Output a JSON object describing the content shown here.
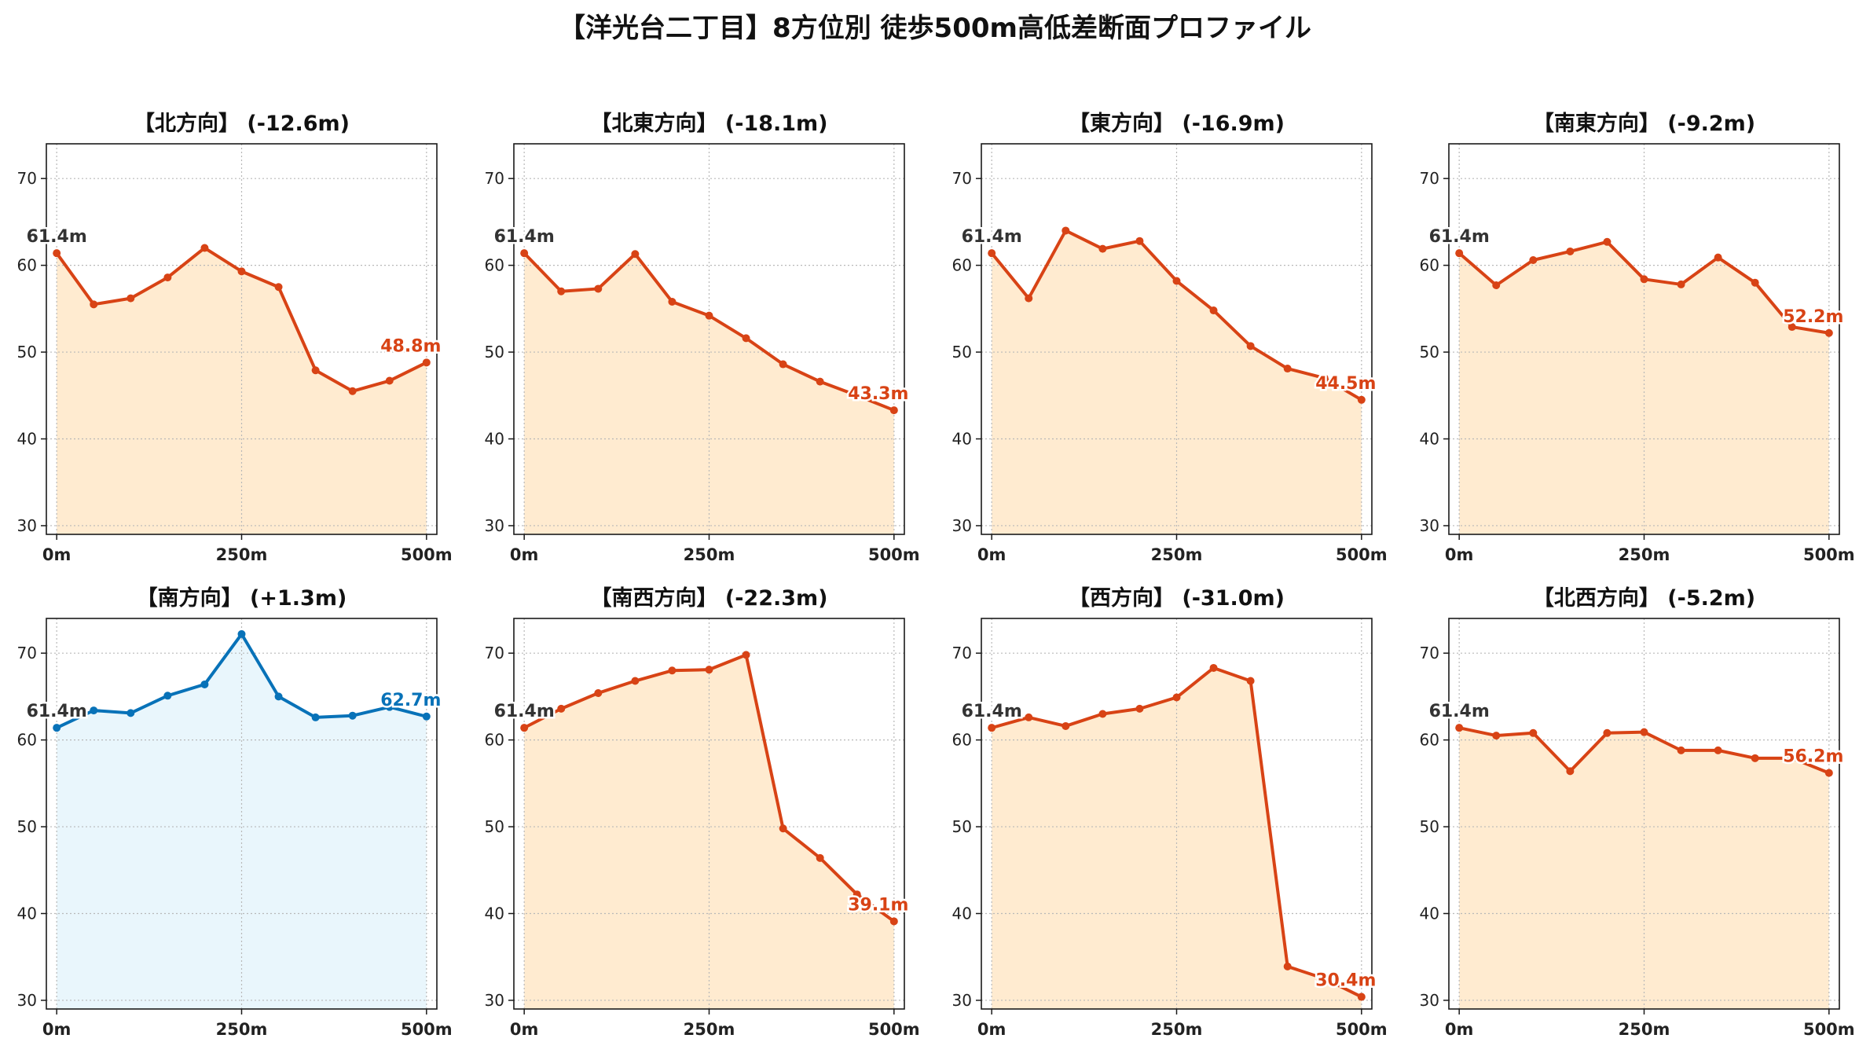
{
  "title": "【洋光台二丁目】8方位別 徒歩500m高低差断面プロファイル",
  "colors": {
    "down_line": "#d84315",
    "down_fill": "#ffebd0",
    "up_line": "#0872b8",
    "up_fill": "#e9f6fc",
    "start_label": "#333333"
  },
  "chart_data": [
    {
      "type": "area",
      "title": "【北方向】 (-12.6m)",
      "trend": "down",
      "x": [
        0,
        50,
        100,
        150,
        200,
        250,
        300,
        350,
        400,
        450,
        500
      ],
      "y": [
        61.4,
        55.5,
        56.2,
        58.6,
        62.0,
        59.3,
        57.5,
        47.9,
        45.5,
        46.7,
        48.8
      ],
      "xticks": [
        "0m",
        "250m",
        "500m"
      ],
      "yticks": [
        30,
        40,
        50,
        60,
        70
      ],
      "ylim": [
        29,
        74
      ],
      "start_label": "61.4m",
      "end_label": "48.8m",
      "grid": true
    },
    {
      "type": "area",
      "title": "【北東方向】 (-18.1m)",
      "trend": "down",
      "x": [
        0,
        50,
        100,
        150,
        200,
        250,
        300,
        350,
        400,
        450,
        500
      ],
      "y": [
        61.4,
        57.0,
        57.3,
        61.3,
        55.8,
        54.2,
        51.6,
        48.6,
        46.6,
        45.0,
        43.3
      ],
      "xticks": [
        "0m",
        "250m",
        "500m"
      ],
      "yticks": [
        30,
        40,
        50,
        60,
        70
      ],
      "ylim": [
        29,
        74
      ],
      "start_label": "61.4m",
      "end_label": "43.3m",
      "grid": true
    },
    {
      "type": "area",
      "title": "【東方向】 (-16.9m)",
      "trend": "down",
      "x": [
        0,
        50,
        100,
        150,
        200,
        250,
        300,
        350,
        400,
        450,
        500
      ],
      "y": [
        61.4,
        56.2,
        64.0,
        61.9,
        62.8,
        58.2,
        54.8,
        50.7,
        48.1,
        47.0,
        44.5
      ],
      "xticks": [
        "0m",
        "250m",
        "500m"
      ],
      "yticks": [
        30,
        40,
        50,
        60,
        70
      ],
      "ylim": [
        29,
        74
      ],
      "start_label": "61.4m",
      "end_label": "44.5m",
      "grid": true
    },
    {
      "type": "area",
      "title": "【南東方向】 (-9.2m)",
      "trend": "down",
      "x": [
        0,
        50,
        100,
        150,
        200,
        250,
        300,
        350,
        400,
        450,
        500
      ],
      "y": [
        61.4,
        57.7,
        60.6,
        61.6,
        62.7,
        58.4,
        57.8,
        60.9,
        58.0,
        52.9,
        52.2
      ],
      "xticks": [
        "0m",
        "250m",
        "500m"
      ],
      "yticks": [
        30,
        40,
        50,
        60,
        70
      ],
      "ylim": [
        29,
        74
      ],
      "start_label": "61.4m",
      "end_label": "52.2m",
      "grid": true
    },
    {
      "type": "area",
      "title": "【南方向】 (+1.3m)",
      "trend": "up",
      "x": [
        0,
        50,
        100,
        150,
        200,
        250,
        300,
        350,
        400,
        450,
        500
      ],
      "y": [
        61.4,
        63.4,
        63.1,
        65.1,
        66.4,
        72.2,
        65.0,
        62.6,
        62.8,
        63.8,
        62.7
      ],
      "xticks": [
        "0m",
        "250m",
        "500m"
      ],
      "yticks": [
        30,
        40,
        50,
        60,
        70
      ],
      "ylim": [
        29,
        74
      ],
      "start_label": "61.4m",
      "end_label": "62.7m",
      "grid": true
    },
    {
      "type": "area",
      "title": "【南西方向】 (-22.3m)",
      "trend": "down",
      "x": [
        0,
        50,
        100,
        150,
        200,
        250,
        300,
        350,
        400,
        450,
        500
      ],
      "y": [
        61.4,
        63.6,
        65.4,
        66.8,
        68.0,
        68.1,
        69.8,
        49.8,
        46.4,
        42.2,
        39.1
      ],
      "xticks": [
        "0m",
        "250m",
        "500m"
      ],
      "yticks": [
        30,
        40,
        50,
        60,
        70
      ],
      "ylim": [
        29,
        74
      ],
      "start_label": "61.4m",
      "end_label": "39.1m",
      "grid": true
    },
    {
      "type": "area",
      "title": "【西方向】 (-31.0m)",
      "trend": "down",
      "x": [
        0,
        50,
        100,
        150,
        200,
        250,
        300,
        350,
        400,
        450,
        500
      ],
      "y": [
        61.4,
        62.6,
        61.6,
        63.0,
        63.6,
        64.9,
        68.3,
        66.8,
        33.9,
        32.5,
        30.4
      ],
      "xticks": [
        "0m",
        "250m",
        "500m"
      ],
      "yticks": [
        30,
        40,
        50,
        60,
        70
      ],
      "ylim": [
        29,
        74
      ],
      "start_label": "61.4m",
      "end_label": "30.4m",
      "grid": true
    },
    {
      "type": "area",
      "title": "【北西方向】 (-5.2m)",
      "trend": "down",
      "x": [
        0,
        50,
        100,
        150,
        200,
        250,
        300,
        350,
        400,
        450,
        500
      ],
      "y": [
        61.4,
        60.5,
        60.8,
        56.4,
        60.8,
        60.9,
        58.8,
        58.8,
        57.9,
        57.9,
        56.2
      ],
      "xticks": [
        "0m",
        "250m",
        "500m"
      ],
      "yticks": [
        30,
        40,
        50,
        60,
        70
      ],
      "ylim": [
        29,
        74
      ],
      "start_label": "61.4m",
      "end_label": "56.2m",
      "grid": true
    }
  ]
}
